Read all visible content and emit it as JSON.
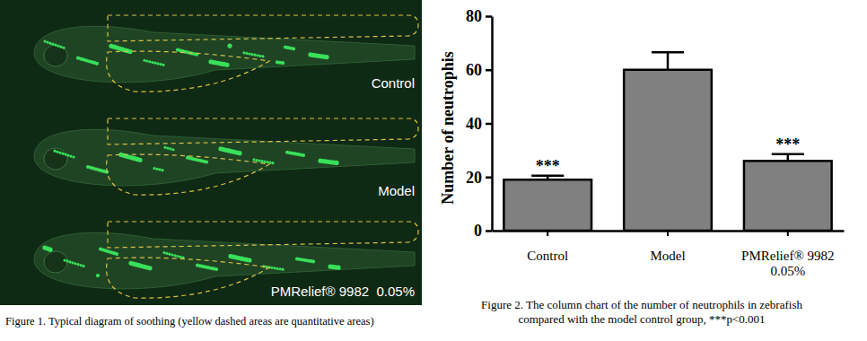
{
  "figure1": {
    "panels": [
      "Control",
      "Model",
      "PMRelief® 9982  0.05%"
    ],
    "caption": "Figure 1. Typical diagram of soothing (yellow dashed areas are quantitative areas)"
  },
  "chart_data": {
    "type": "bar",
    "categories": [
      "Control",
      "Model",
      "PMRelief® 9982\n0.05%"
    ],
    "values": [
      19,
      60,
      26
    ],
    "errors": [
      1.5,
      6.5,
      2.5
    ],
    "significance": [
      "***",
      null,
      "***"
    ],
    "y_label": "Number of neutrophis",
    "ylim": [
      0,
      80
    ],
    "yticks": [
      0,
      20,
      40,
      60,
      80
    ],
    "color": "#808080",
    "caption": "Figure 2. The column chart of the number of neutrophils in zebrafish\ncompared with the model control group, ***p<0.001"
  }
}
